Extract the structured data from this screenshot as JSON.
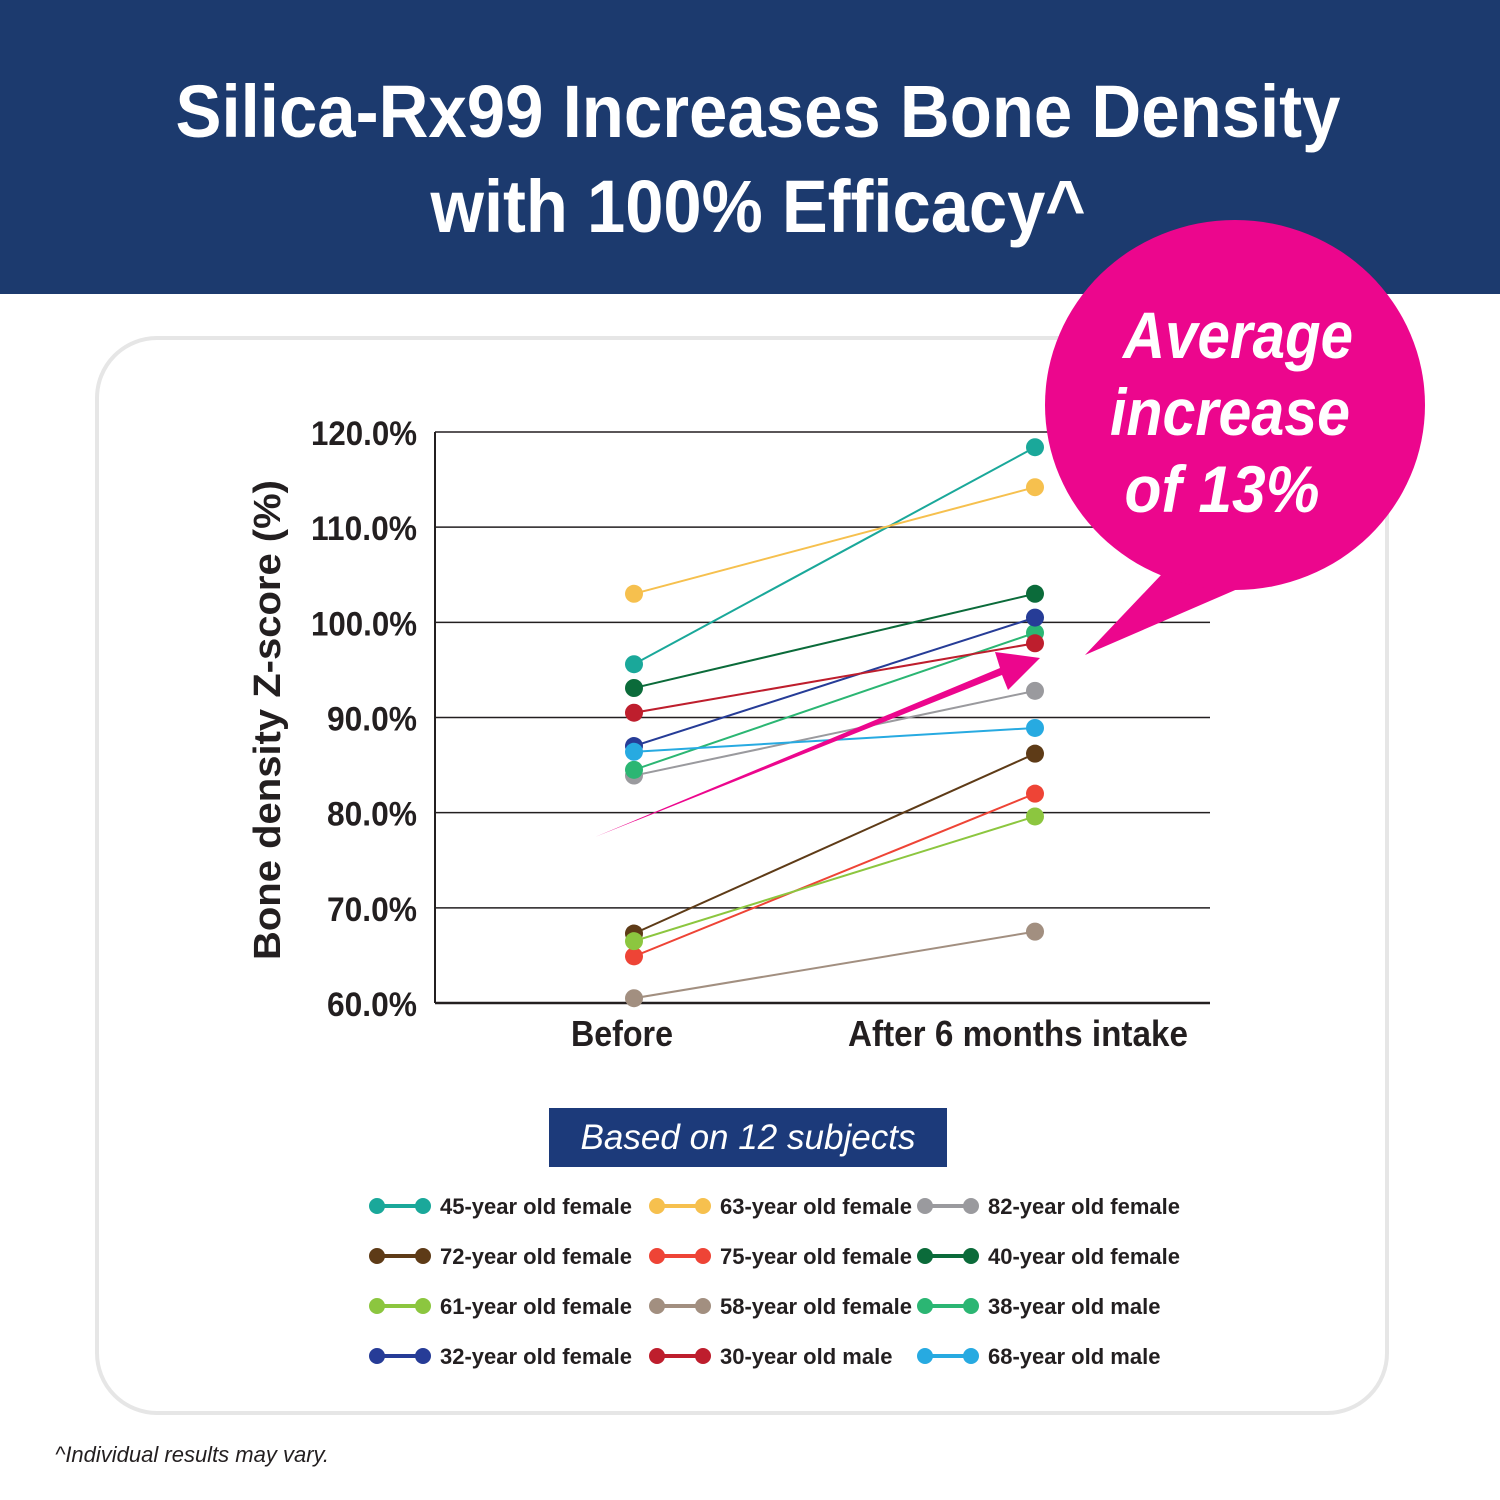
{
  "header": {
    "title_line1": "Silica-Rx99 Increases Bone Density",
    "title_line2": "with 100% Efficacy^",
    "background": "#1c3a6e"
  },
  "callout": {
    "line1": "Average",
    "line2": "increase",
    "line3": "of 13%",
    "color": "#ec068d"
  },
  "badge": {
    "text": "Based on 12 subjects",
    "color": "#1c3a7a"
  },
  "footnote": "^Individual results may vary.",
  "chart_data": {
    "type": "line",
    "title": "",
    "xlabel": "",
    "ylabel": "Bone density Z-score (%)",
    "categories": [
      "Before",
      "After 6 months intake"
    ],
    "ylim": [
      60,
      120
    ],
    "yticks": [
      "60.0%",
      "70.0%",
      "80.0%",
      "90.0%",
      "100.0%",
      "110.0%",
      "120.0%"
    ],
    "grid": true,
    "legend_position": "bottom",
    "series": [
      {
        "name": "45-year old female",
        "color": "#1aa89a",
        "values": [
          95.6,
          118.4
        ]
      },
      {
        "name": "63-year old female",
        "color": "#f6c04e",
        "values": [
          103.0,
          114.2
        ]
      },
      {
        "name": "82-year old female",
        "color": "#9a9a9e",
        "values": [
          83.9,
          92.8
        ]
      },
      {
        "name": "72-year old female",
        "color": "#5e3b17",
        "values": [
          67.3,
          86.2
        ]
      },
      {
        "name": "75-year old female",
        "color": "#ee4436",
        "values": [
          64.9,
          82.0
        ]
      },
      {
        "name": "40-year old female",
        "color": "#0b6b3a",
        "values": [
          93.1,
          103.0
        ]
      },
      {
        "name": "61-year old female",
        "color": "#8cc63f",
        "values": [
          66.5,
          79.6
        ]
      },
      {
        "name": "58-year old female",
        "color": "#a28f80",
        "values": [
          60.5,
          67.5
        ]
      },
      {
        "name": "38-year old male",
        "color": "#2bb673",
        "values": [
          84.5,
          98.9
        ]
      },
      {
        "name": "32-year old female",
        "color": "#263c97",
        "values": [
          87.0,
          100.5
        ]
      },
      {
        "name": "30-year old male",
        "color": "#be1e2d",
        "values": [
          90.5,
          97.8
        ]
      },
      {
        "name": "68-year old male",
        "color": "#27aae1",
        "values": [
          86.4,
          88.9
        ]
      }
    ]
  }
}
